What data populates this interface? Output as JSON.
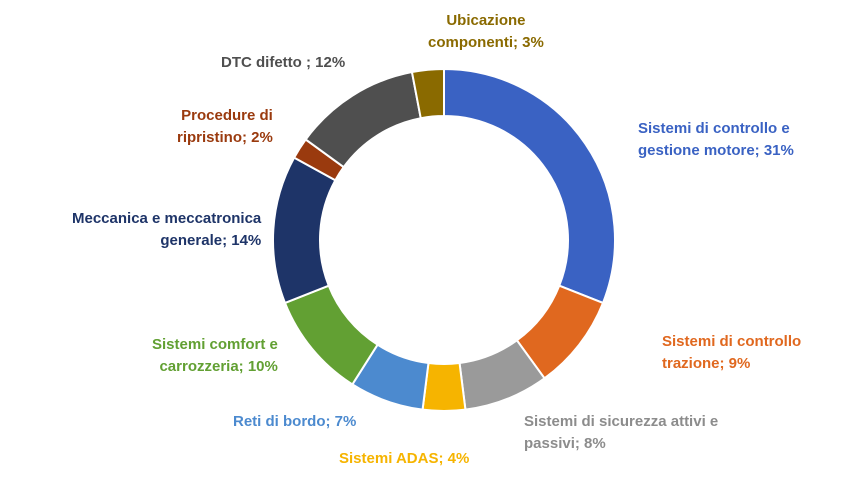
{
  "chart_data": {
    "type": "pie",
    "variant": "donut",
    "legend": "none",
    "slices": [
      {
        "label_lines": [
          "Sistemi di controllo e",
          "gestione motore; 31%"
        ],
        "name": "Sistemi di controllo e gestione motore",
        "value": 31,
        "color": "#3A62C3"
      },
      {
        "label_lines": [
          "Sistemi di controllo",
          "trazione; 9%"
        ],
        "name": "Sistemi di controllo trazione",
        "value": 9,
        "color": "#E0681F"
      },
      {
        "label_lines": [
          "Sistemi di sicurezza attivi e",
          "passivi; 8%"
        ],
        "name": "Sistemi di sicurezza attivi e passivi",
        "value": 8,
        "color": "#9A9A9A"
      },
      {
        "label_lines": [
          "Sistemi ADAS; 4%"
        ],
        "name": "Sistemi ADAS",
        "value": 4,
        "color": "#F6B400"
      },
      {
        "label_lines": [
          "Reti di bordo; 7%"
        ],
        "name": "Reti di bordo",
        "value": 7,
        "color": "#4C8ACF"
      },
      {
        "label_lines": [
          "Sistemi comfort e",
          "carrozzeria; 10%"
        ],
        "name": "Sistemi comfort e carrozzeria",
        "value": 10,
        "color": "#62A033"
      },
      {
        "label_lines": [
          "Meccanica e meccatronica",
          "generale; 14%"
        ],
        "name": "Meccanica e meccatronica generale",
        "value": 14,
        "color": "#1E3468"
      },
      {
        "label_lines": [
          "Procedure di",
          "ripristino; 2%"
        ],
        "name": "Procedure di ripristino",
        "value": 2,
        "color": "#9A3A0E"
      },
      {
        "label_lines": [
          "DTC difetto ; 12%"
        ],
        "name": "DTC difetto",
        "value": 12,
        "color": "#4F4F4F"
      },
      {
        "label_lines": [
          "Ubicazione",
          "componenti; 3%"
        ],
        "name": "Ubicazione componenti",
        "value": 3,
        "color": "#8A6A00"
      }
    ],
    "label_colors": [
      "#3A62C3",
      "#E0681F",
      "#8C8C8C",
      "#F6B400",
      "#4C8ACF",
      "#62A033",
      "#1E3468",
      "#9A3A0E",
      "#4F4F4F",
      "#8A6A00"
    ]
  }
}
